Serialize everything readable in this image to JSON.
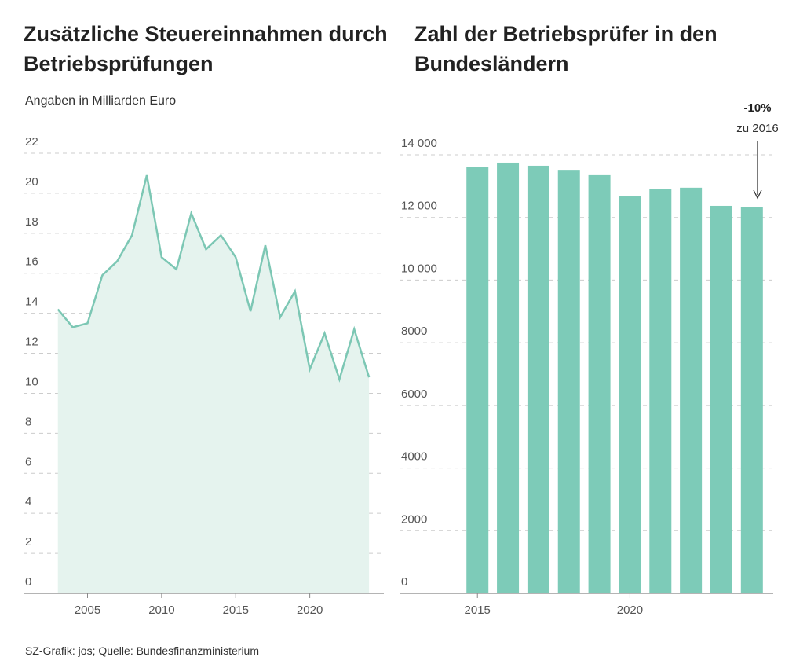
{
  "chart_data": [
    {
      "type": "area",
      "title": "Zusätzliche Steuereinnahmen durch Betriebsprüfungen",
      "subtitle": "Angaben in Milliarden Euro",
      "x": [
        2003,
        2004,
        2005,
        2006,
        2007,
        2008,
        2009,
        2010,
        2011,
        2012,
        2013,
        2014,
        2015,
        2016,
        2017,
        2018,
        2019,
        2020,
        2021,
        2022,
        2023,
        2024
      ],
      "values": [
        14.2,
        13.3,
        13.5,
        15.9,
        16.6,
        17.9,
        20.9,
        16.8,
        16.2,
        19.0,
        17.2,
        17.9,
        16.8,
        14.1,
        17.4,
        13.8,
        15.1,
        11.2,
        13.0,
        10.7,
        13.2,
        10.8
      ],
      "color": "#7cc7b4",
      "fill": "#e5f3ee",
      "xlim": [
        2001,
        2025
      ],
      "xticks": [
        2005,
        2010,
        2015,
        2020
      ],
      "ylim": [
        0,
        22
      ],
      "yticks": [
        0,
        2,
        4,
        6,
        8,
        10,
        12,
        14,
        16,
        18,
        20,
        22
      ],
      "grid": true
    },
    {
      "type": "bar",
      "title": "Zahl der Betriebsprüfer in den Bundesländern",
      "x": [
        2015,
        2016,
        2017,
        2018,
        2019,
        2020,
        2021,
        2022,
        2023,
        2024
      ],
      "values": [
        13620,
        13750,
        13650,
        13520,
        13350,
        12670,
        12900,
        12950,
        12370,
        12340
      ],
      "color": "#7dcbb8",
      "xlim": [
        2012.6,
        2024.7
      ],
      "xticks": [
        2015,
        2020
      ],
      "ylim": [
        0,
        14000
      ],
      "yticks": [
        0,
        2000,
        4000,
        6000,
        8000,
        {
          "value": 10000,
          "label": "10 000"
        },
        {
          "value": 12000,
          "label": "12 000"
        },
        {
          "value": 14000,
          "label": "14 000"
        }
      ],
      "grid": true,
      "annotation": {
        "value": "-10%",
        "note": "zu 2016"
      }
    }
  ],
  "footer": {
    "source": "SZ-Grafik: jos; Quelle: Bundesfinanzministerium"
  }
}
